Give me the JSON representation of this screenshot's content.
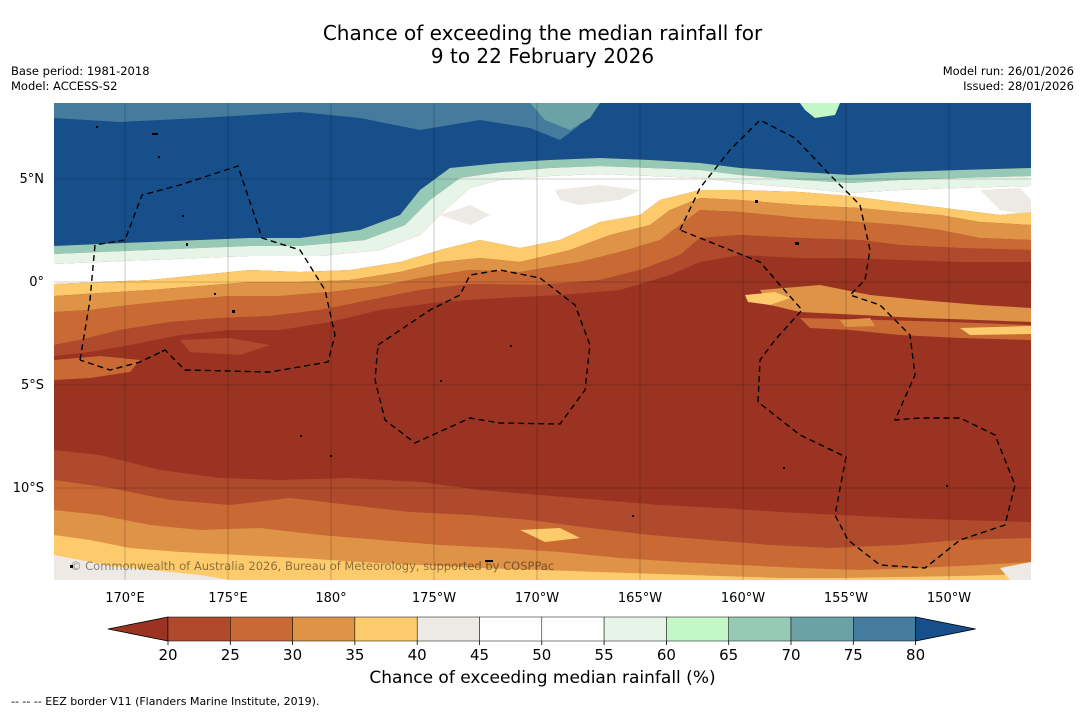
{
  "title": {
    "line1": "Chance of exceeding the median rainfall for",
    "line2": "9 to 22 February 2026"
  },
  "meta_left": {
    "base_period": "Base period: 1981-2018",
    "model": "Model: ACCESS-S2"
  },
  "meta_right": {
    "model_run": "Model run: 26/01/2026",
    "issued": "Issued: 28/01/2026"
  },
  "map": {
    "lat_labels": [
      "5°N",
      "0°",
      "5°S",
      "10°S"
    ],
    "lon_labels": [
      "170°E",
      "175°E",
      "180°",
      "175°W",
      "170°W",
      "165°W",
      "160°W",
      "155°W",
      "150°W"
    ],
    "copyright": "© Commonwealth of Australia 2026, Bureau of Meteorology, supported by COSPPac"
  },
  "colorbar": {
    "ticks": [
      "20",
      "25",
      "30",
      "35",
      "40",
      "45",
      "50",
      "55",
      "60",
      "65",
      "70",
      "75",
      "80"
    ],
    "colors": [
      "#9a3322",
      "#b04a2c",
      "#c96a35",
      "#de9347",
      "#fdcb6c",
      "#ede9e4",
      "#ffffff",
      "#ffffff",
      "#e7f5e8",
      "#c4f7c7",
      "#96cab7",
      "#6aa2a6",
      "#457b9d",
      "#174f8b"
    ],
    "label": "Chance of exceeding median rainfall (%)"
  },
  "footnote": "-- -- -- EEZ border V11 (Flanders Marine Institute, 2019)."
}
